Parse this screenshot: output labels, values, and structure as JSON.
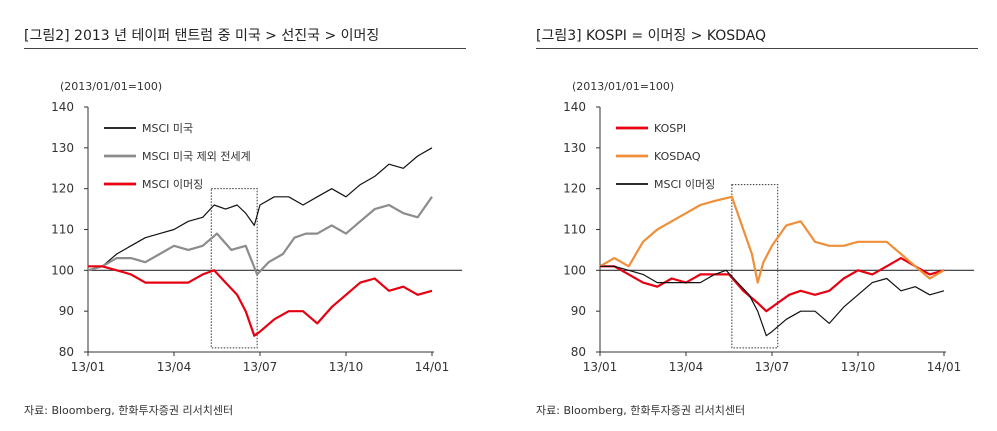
{
  "panels": [
    {
      "id": "left",
      "heading": "[그림2]   2013 년 테이퍼 탠트럼 중 미국 > 선진국 > 이머징",
      "source": "자료: Bloomberg, 한화투자증권 리서치센터"
    },
    {
      "id": "right",
      "heading": "[그림3]   KOSPI = 이머징 > KOSDAQ",
      "source": "자료: Bloomberg, 한화투자증권 리서치센터"
    }
  ],
  "chart_data": [
    {
      "type": "line",
      "title": "",
      "unit_note": "(2013/01/01=100)",
      "xlabel": "",
      "ylabel": "",
      "x_domain": [
        0,
        12
      ],
      "ylim": [
        80,
        140
      ],
      "yticks": [
        80,
        90,
        100,
        110,
        120,
        130,
        140
      ],
      "xticks": [
        {
          "x": 0,
          "label": "13/01"
        },
        {
          "x": 3,
          "label": "13/04"
        },
        {
          "x": 6,
          "label": "13/07"
        },
        {
          "x": 9,
          "label": "13/10"
        },
        {
          "x": 12,
          "label": "14/01"
        }
      ],
      "reference_line": 100,
      "highlight_box": {
        "x": [
          4.3,
          5.9
        ],
        "y": [
          81,
          120
        ]
      },
      "legend_placement": "top-left",
      "series": [
        {
          "name": "MSCI 미국",
          "color": "#111111",
          "width": 1.2,
          "points": [
            [
              0,
              100
            ],
            [
              0.5,
              101
            ],
            [
              1,
              104
            ],
            [
              1.5,
              106
            ],
            [
              2,
              108
            ],
            [
              2.5,
              109
            ],
            [
              3,
              110
            ],
            [
              3.5,
              112
            ],
            [
              4,
              113
            ],
            [
              4.4,
              116
            ],
            [
              4.8,
              115
            ],
            [
              5.2,
              116
            ],
            [
              5.5,
              114
            ],
            [
              5.8,
              111
            ],
            [
              6,
              116
            ],
            [
              6.5,
              118
            ],
            [
              7,
              118
            ],
            [
              7.5,
              116
            ],
            [
              8,
              118
            ],
            [
              8.5,
              120
            ],
            [
              9,
              118
            ],
            [
              9.5,
              121
            ],
            [
              10,
              123
            ],
            [
              10.5,
              126
            ],
            [
              11,
              125
            ],
            [
              11.5,
              128
            ],
            [
              12,
              130
            ]
          ]
        },
        {
          "name": "MSCI 미국 제외 전세계",
          "color": "#8c8c8c",
          "width": 2.2,
          "points": [
            [
              0,
              100
            ],
            [
              0.5,
              101
            ],
            [
              1,
              103
            ],
            [
              1.5,
              103
            ],
            [
              2,
              102
            ],
            [
              2.5,
              104
            ],
            [
              3,
              106
            ],
            [
              3.5,
              105
            ],
            [
              4,
              106
            ],
            [
              4.5,
              109
            ],
            [
              5,
              105
            ],
            [
              5.5,
              106
            ],
            [
              5.9,
              99
            ],
            [
              6.3,
              102
            ],
            [
              6.8,
              104
            ],
            [
              7.2,
              108
            ],
            [
              7.6,
              109
            ],
            [
              8,
              109
            ],
            [
              8.5,
              111
            ],
            [
              9,
              109
            ],
            [
              9.5,
              112
            ],
            [
              10,
              115
            ],
            [
              10.5,
              116
            ],
            [
              11,
              114
            ],
            [
              11.5,
              113
            ],
            [
              12,
              118
            ]
          ]
        },
        {
          "name": "MSCI 이머징",
          "color": "#e60012",
          "width": 2.2,
          "points": [
            [
              0,
              101
            ],
            [
              0.5,
              101
            ],
            [
              1,
              100
            ],
            [
              1.5,
              99
            ],
            [
              2,
              97
            ],
            [
              2.5,
              97
            ],
            [
              3,
              97
            ],
            [
              3.5,
              97
            ],
            [
              4,
              99
            ],
            [
              4.4,
              100
            ],
            [
              4.8,
              97
            ],
            [
              5.2,
              94
            ],
            [
              5.5,
              90
            ],
            [
              5.8,
              84
            ],
            [
              6,
              85
            ],
            [
              6.5,
              88
            ],
            [
              7,
              90
            ],
            [
              7.5,
              90
            ],
            [
              8,
              87
            ],
            [
              8.5,
              91
            ],
            [
              9,
              94
            ],
            [
              9.5,
              97
            ],
            [
              10,
              98
            ],
            [
              10.5,
              95
            ],
            [
              11,
              96
            ],
            [
              11.5,
              94
            ],
            [
              12,
              95
            ]
          ]
        }
      ]
    },
    {
      "type": "line",
      "title": "",
      "unit_note": "(2013/01/01=100)",
      "xlabel": "",
      "ylabel": "",
      "x_domain": [
        0,
        12
      ],
      "ylim": [
        80,
        140
      ],
      "yticks": [
        80,
        90,
        100,
        110,
        120,
        130,
        140
      ],
      "xticks": [
        {
          "x": 0,
          "label": "13/01"
        },
        {
          "x": 3,
          "label": "13/04"
        },
        {
          "x": 6,
          "label": "13/07"
        },
        {
          "x": 9,
          "label": "13/10"
        },
        {
          "x": 12,
          "label": "14/01"
        }
      ],
      "reference_line": 100,
      "highlight_box": {
        "x": [
          4.6,
          6.2
        ],
        "y": [
          81,
          121
        ]
      },
      "legend_placement": "top-left",
      "series": [
        {
          "name": "KOSPI",
          "color": "#e60012",
          "width": 2.2,
          "points": [
            [
              0,
              101
            ],
            [
              0.5,
              101
            ],
            [
              1,
              99
            ],
            [
              1.5,
              97
            ],
            [
              2,
              96
            ],
            [
              2.5,
              98
            ],
            [
              3,
              97
            ],
            [
              3.5,
              99
            ],
            [
              4,
              99
            ],
            [
              4.5,
              99
            ],
            [
              5,
              95
            ],
            [
              5.5,
              92
            ],
            [
              5.8,
              90
            ],
            [
              6.2,
              92
            ],
            [
              6.6,
              94
            ],
            [
              7,
              95
            ],
            [
              7.5,
              94
            ],
            [
              8,
              95
            ],
            [
              8.5,
              98
            ],
            [
              9,
              100
            ],
            [
              9.5,
              99
            ],
            [
              10,
              101
            ],
            [
              10.5,
              103
            ],
            [
              11,
              101
            ],
            [
              11.5,
              99
            ],
            [
              12,
              100
            ]
          ]
        },
        {
          "name": "KOSDAQ",
          "color": "#ef8f3a",
          "width": 2.2,
          "points": [
            [
              0,
              101
            ],
            [
              0.5,
              103
            ],
            [
              1,
              101
            ],
            [
              1.5,
              107
            ],
            [
              2,
              110
            ],
            [
              2.5,
              112
            ],
            [
              3,
              114
            ],
            [
              3.5,
              116
            ],
            [
              4,
              117
            ],
            [
              4.6,
              118
            ],
            [
              5,
              110
            ],
            [
              5.3,
              104
            ],
            [
              5.5,
              97
            ],
            [
              5.7,
              102
            ],
            [
              6,
              106
            ],
            [
              6.5,
              111
            ],
            [
              7,
              112
            ],
            [
              7.5,
              107
            ],
            [
              8,
              106
            ],
            [
              8.5,
              106
            ],
            [
              9,
              107
            ],
            [
              9.5,
              107
            ],
            [
              10,
              107
            ],
            [
              10.5,
              104
            ],
            [
              11,
              101
            ],
            [
              11.5,
              98
            ],
            [
              12,
              100
            ]
          ]
        },
        {
          "name": "MSCI 이머징",
          "color": "#111111",
          "width": 1.2,
          "points": [
            [
              0,
              101
            ],
            [
              0.5,
              101
            ],
            [
              1,
              100
            ],
            [
              1.5,
              99
            ],
            [
              2,
              97
            ],
            [
              2.5,
              97
            ],
            [
              3,
              97
            ],
            [
              3.5,
              97
            ],
            [
              4,
              99
            ],
            [
              4.4,
              100
            ],
            [
              4.8,
              97
            ],
            [
              5.2,
              94
            ],
            [
              5.5,
              90
            ],
            [
              5.8,
              84
            ],
            [
              6,
              85
            ],
            [
              6.5,
              88
            ],
            [
              7,
              90
            ],
            [
              7.5,
              90
            ],
            [
              8,
              87
            ],
            [
              8.5,
              91
            ],
            [
              9,
              94
            ],
            [
              9.5,
              97
            ],
            [
              10,
              98
            ],
            [
              10.5,
              95
            ],
            [
              11,
              96
            ],
            [
              11.5,
              94
            ],
            [
              12,
              95
            ]
          ]
        }
      ]
    }
  ]
}
